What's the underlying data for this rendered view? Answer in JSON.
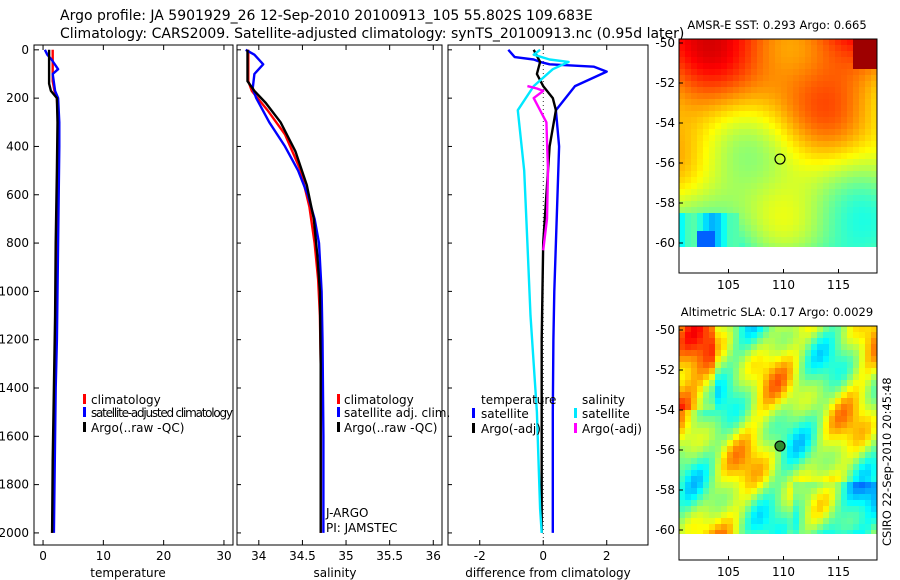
{
  "header": {
    "line1": "Argo profile: JA 5901929_26 12-Sep-2010 20100913_105 55.802S 109.683E",
    "line2": "Climatology: CARS2009. Satellite-adjusted climatology: synTS_20100913.nc (0.95d later)"
  },
  "side_label": "CSIRO 22-Sep-2010 20:45:48",
  "colors": {
    "red": "#ff0000",
    "blue": "#0000ff",
    "black": "#000000",
    "cyan": "#00e8ff",
    "magenta": "#ff00ff"
  },
  "chart_data": [
    {
      "type": "line",
      "xlabel": "temperature",
      "ylabel": "",
      "xlim": [
        -1.5,
        31.5
      ],
      "ylim": [
        2050,
        -20
      ],
      "x_ticks": [
        0,
        10,
        20,
        30
      ],
      "y_ticks": [
        0,
        200,
        400,
        600,
        800,
        1000,
        1200,
        1400,
        1600,
        1800,
        2000
      ],
      "legend": {
        "position": "bottom-right"
      },
      "series": [
        {
          "name": "climatology",
          "color": "red",
          "x": [
            1.6,
            1.6,
            1.9,
            2.3,
            2.5,
            2.5,
            2.4,
            2.2,
            2.1,
            2.0,
            1.9,
            1.8,
            1.7,
            1.6,
            1.5
          ],
          "y": [
            0,
            130,
            170,
            200,
            300,
            500,
            700,
            900,
            1100,
            1300,
            1500,
            1600,
            1800,
            1900,
            2000
          ]
        },
        {
          "name": "satellite-adjusted climatology",
          "color": "blue",
          "x": [
            0.3,
            0.7,
            1.4,
            2.5,
            1.6,
            2.0,
            2.5,
            2.7,
            2.7,
            2.6,
            2.5,
            2.4,
            2.3,
            2.1,
            2.0,
            1.9,
            1.8
          ],
          "y": [
            0,
            20,
            40,
            80,
            100,
            170,
            200,
            300,
            400,
            600,
            800,
            1000,
            1200,
            1400,
            1600,
            1800,
            2000
          ]
        },
        {
          "name": "Argo(..raw -QC)",
          "color": "black",
          "x": [
            1.0,
            1.0,
            1.3,
            2.3,
            2.4,
            2.3,
            2.1,
            2.0,
            1.8,
            1.6,
            1.5
          ],
          "y": [
            0,
            140,
            170,
            200,
            300,
            500,
            800,
            1100,
            1400,
            1700,
            2000
          ]
        }
      ]
    },
    {
      "type": "line",
      "xlabel": "salinity",
      "ylabel": "",
      "xlim": [
        33.75,
        36.1
      ],
      "ylim": [
        2050,
        -20
      ],
      "x_ticks": [
        34,
        34.5,
        35,
        35.5,
        36
      ],
      "legend": {
        "position": "bottom-right"
      },
      "annotations": [
        "J-ARGO",
        "PI: JAMSTEC"
      ],
      "series": [
        {
          "name": "climatology",
          "color": "red",
          "x": [
            33.88,
            33.88,
            33.92,
            34.1,
            34.3,
            34.48,
            34.58,
            34.64,
            34.68,
            34.7,
            34.71,
            34.71,
            34.71
          ],
          "y": [
            0,
            130,
            170,
            250,
            350,
            500,
            650,
            800,
            950,
            1100,
            1300,
            1600,
            2000
          ]
        },
        {
          "name": "satellite adj. clim.",
          "color": "blue",
          "x": [
            33.85,
            33.95,
            34.05,
            33.95,
            33.93,
            33.97,
            34.12,
            34.3,
            34.45,
            34.56,
            34.64,
            34.69,
            34.72,
            34.73,
            34.74,
            34.74
          ],
          "y": [
            0,
            20,
            60,
            100,
            160,
            200,
            300,
            400,
            500,
            600,
            700,
            800,
            1000,
            1200,
            1600,
            2000
          ]
        },
        {
          "name": "Argo(..raw -QC)",
          "color": "black",
          "x": [
            33.87,
            33.87,
            33.95,
            34.08,
            34.25,
            34.42,
            34.55,
            34.63,
            34.67,
            34.7,
            34.71,
            34.71,
            34.71
          ],
          "y": [
            0,
            130,
            170,
            220,
            300,
            420,
            560,
            700,
            850,
            1000,
            1300,
            1600,
            2000
          ]
        }
      ]
    },
    {
      "type": "line",
      "xlabel": "difference from climatology",
      "ylabel": "",
      "xlim": [
        -3,
        3.3
      ],
      "ylim": [
        2050,
        -20
      ],
      "x_ticks": [
        -2,
        0,
        2
      ],
      "legend": {
        "position": "bottom",
        "groups": [
          "temperature",
          "salinity"
        ]
      },
      "series": [
        {
          "name": "satellite",
          "group": "temperature",
          "color": "blue",
          "x": [
            -1.1,
            -0.9,
            -0.3,
            -0.1,
            0.2,
            1.6,
            2.0,
            1.0,
            0.4,
            0.5,
            0.45,
            0.4,
            0.35,
            0.32,
            0.3,
            0.3,
            0.3
          ],
          "y": [
            0,
            30,
            40,
            50,
            60,
            70,
            90,
            150,
            250,
            400,
            600,
            800,
            1000,
            1200,
            1500,
            1800,
            2000
          ]
        },
        {
          "name": "Argo(-adj)",
          "group": "temperature",
          "color": "black",
          "x": [
            -0.3,
            -0.1,
            -0.2,
            0.0,
            0.3,
            0.4,
            0.2,
            0.0,
            -0.05,
            -0.05,
            -0.05
          ],
          "y": [
            0,
            50,
            100,
            150,
            200,
            250,
            400,
            800,
            1200,
            1600,
            2000
          ]
        },
        {
          "name": "satellite",
          "group": "salinity",
          "color": "cyan",
          "x": [
            -0.1,
            -0.3,
            0.2,
            0.8,
            0.3,
            -0.3,
            -0.8,
            -0.6,
            -0.5,
            -0.4,
            -0.3,
            -0.2,
            -0.15,
            -0.1,
            -0.05
          ],
          "y": [
            0,
            20,
            40,
            50,
            80,
            150,
            250,
            500,
            800,
            1100,
            1300,
            1500,
            1700,
            1900,
            2000
          ]
        },
        {
          "name": "Argo(-adj)",
          "group": "salinity",
          "color": "magenta",
          "x": [
            -0.5,
            -0.2,
            0.0,
            -0.3,
            0.1,
            0.15,
            0.12,
            0.0
          ],
          "y": [
            150,
            160,
            170,
            200,
            300,
            500,
            700,
            830
          ]
        }
      ]
    },
    {
      "type": "heatmap",
      "title": "AMSR-E SST: 0.293 Argo: 0.665",
      "xlim": [
        100.5,
        118.5
      ],
      "ylim": [
        -61.5,
        -49.8
      ],
      "x_ticks": [
        105,
        110,
        115
      ],
      "y_ticks": [
        -50,
        -52,
        -54,
        -56,
        -58,
        -60
      ],
      "argo_position": {
        "lon": 109.683,
        "lat": -55.802
      },
      "colormap": "jet",
      "no_data_below_lat": -60.2
    },
    {
      "type": "heatmap",
      "title": "Altimetric SLA: 0.17 Argo: 0.0029",
      "xlim": [
        100.5,
        118.5
      ],
      "ylim": [
        -61.5,
        -49.8
      ],
      "x_ticks": [
        105,
        110,
        115
      ],
      "y_ticks": [
        -50,
        -52,
        -54,
        -56,
        -58,
        -60
      ],
      "argo_position": {
        "lon": 109.683,
        "lat": -55.802
      },
      "colormap": "jet",
      "no_data_below_lat": -60.2
    }
  ]
}
